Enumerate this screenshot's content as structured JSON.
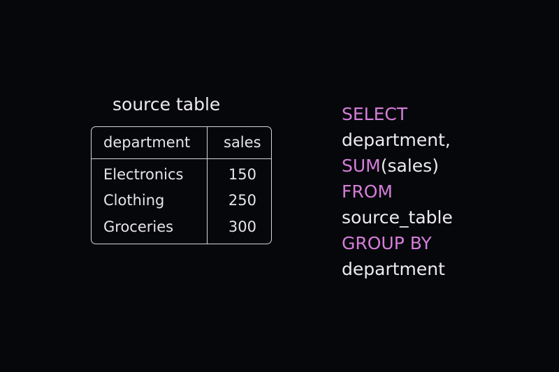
{
  "source_table": {
    "caption": "source table",
    "columns": [
      "department",
      "sales"
    ],
    "rows": [
      {
        "department": "Electronics",
        "sales": "150"
      },
      {
        "department": "Clothing",
        "sales": "250"
      },
      {
        "department": "Groceries",
        "sales": "300"
      }
    ]
  },
  "query": {
    "select_kw": "SELECT",
    "select_col": "department,",
    "agg_kw": "SUM",
    "agg_arg": "(sales)",
    "from_kw": "FROM",
    "from_table": "source_table",
    "group_kw": "GROUP BY",
    "group_col": "department"
  },
  "colors": {
    "background": "#06070a",
    "keyword": "#d57ddb",
    "text": "#ecebef",
    "border": "#d6d5da"
  }
}
